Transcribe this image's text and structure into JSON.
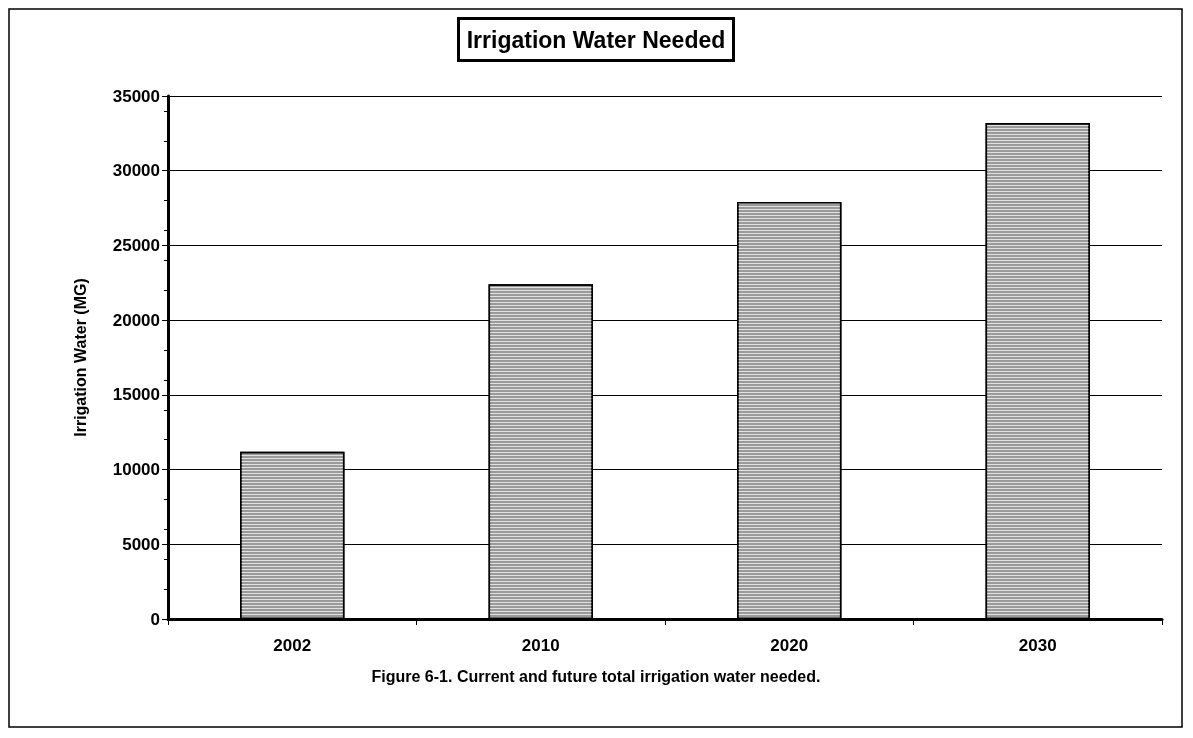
{
  "chart_data": {
    "type": "bar",
    "title": "Irrigation Water Needed",
    "ylabel": "Irrigation Water (MG)",
    "categories": [
      "2002",
      "2010",
      "2020",
      "2030"
    ],
    "values": [
      11200,
      22400,
      27900,
      33200
    ],
    "color": "#9a9a9a",
    "ylim": [
      0,
      35000
    ],
    "yticks": [
      0,
      5000,
      10000,
      15000,
      20000,
      25000,
      30000,
      35000
    ],
    "grid": "y",
    "annotations": [
      "Figure 6-1. Current and future total irrigation water needed."
    ]
  }
}
